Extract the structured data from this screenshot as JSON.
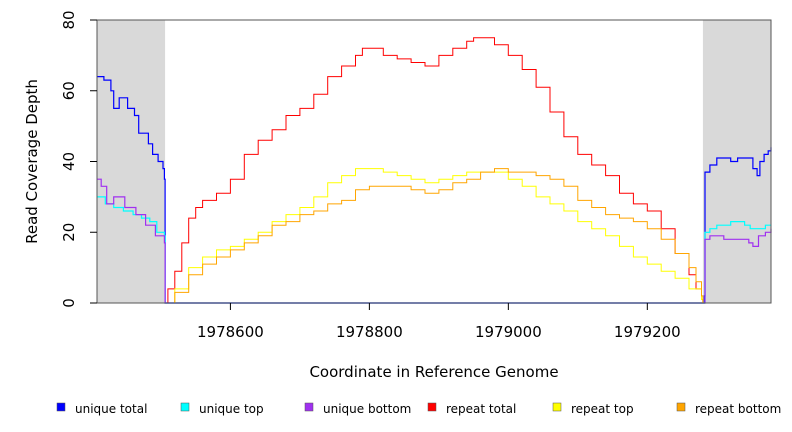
{
  "chart_data": {
    "type": "line",
    "title": "",
    "xlabel": "Coordinate in Reference Genome",
    "ylabel": "Read Coverage Depth",
    "xlim": [
      1978408,
      1979378
    ],
    "ylim": [
      0,
      80
    ],
    "xticks": [
      1978600,
      1978800,
      1979000,
      1979200
    ],
    "yticks": [
      0,
      20,
      40,
      60,
      80
    ],
    "grid": false,
    "shaded_regions": [
      [
        1978408,
        1978506
      ],
      [
        1979280,
        1979378
      ]
    ],
    "legend_position": "bottom",
    "series": [
      {
        "name": "unique total",
        "color": "#0000ff",
        "points": [
          [
            1978408,
            64
          ],
          [
            1978418,
            63
          ],
          [
            1978428,
            60
          ],
          [
            1978432,
            55
          ],
          [
            1978440,
            58
          ],
          [
            1978452,
            55
          ],
          [
            1978462,
            53
          ],
          [
            1978468,
            48
          ],
          [
            1978482,
            45
          ],
          [
            1978488,
            42
          ],
          [
            1978496,
            40
          ],
          [
            1978503,
            38
          ],
          [
            1978505,
            35
          ],
          [
            1978506,
            0
          ],
          [
            1979280,
            0
          ],
          [
            1979282,
            2
          ],
          [
            1979283,
            37
          ],
          [
            1979290,
            39
          ],
          [
            1979300,
            41
          ],
          [
            1979320,
            40
          ],
          [
            1979330,
            41
          ],
          [
            1979348,
            41
          ],
          [
            1979352,
            38
          ],
          [
            1979358,
            36
          ],
          [
            1979362,
            40
          ],
          [
            1979368,
            42
          ],
          [
            1979374,
            43
          ],
          [
            1979378,
            44
          ]
        ]
      },
      {
        "name": "unique top",
        "color": "#00ffff",
        "points": [
          [
            1978408,
            30
          ],
          [
            1978420,
            28
          ],
          [
            1978432,
            27
          ],
          [
            1978446,
            26
          ],
          [
            1978460,
            25
          ],
          [
            1978472,
            24
          ],
          [
            1978484,
            23
          ],
          [
            1978494,
            20
          ],
          [
            1978505,
            19
          ],
          [
            1978506,
            0
          ],
          [
            1979280,
            0
          ],
          [
            1979283,
            20
          ],
          [
            1979290,
            21
          ],
          [
            1979300,
            22
          ],
          [
            1979320,
            23
          ],
          [
            1979340,
            22
          ],
          [
            1979348,
            21
          ],
          [
            1979360,
            21
          ],
          [
            1979370,
            22
          ],
          [
            1979378,
            22
          ]
        ]
      },
      {
        "name": "unique bottom",
        "color": "#a030f0",
        "points": [
          [
            1978408,
            35
          ],
          [
            1978414,
            33
          ],
          [
            1978422,
            28
          ],
          [
            1978432,
            30
          ],
          [
            1978448,
            27
          ],
          [
            1978464,
            25
          ],
          [
            1978478,
            22
          ],
          [
            1978492,
            19
          ],
          [
            1978505,
            17
          ],
          [
            1978506,
            0
          ],
          [
            1979280,
            0
          ],
          [
            1979283,
            18
          ],
          [
            1979290,
            19
          ],
          [
            1979310,
            18
          ],
          [
            1979338,
            18
          ],
          [
            1979346,
            17
          ],
          [
            1979352,
            16
          ],
          [
            1979360,
            19
          ],
          [
            1979370,
            20
          ],
          [
            1979378,
            21
          ]
        ]
      },
      {
        "name": "repeat total",
        "color": "#ff0000",
        "points": [
          [
            1978506,
            0
          ],
          [
            1978510,
            4
          ],
          [
            1978520,
            9
          ],
          [
            1978530,
            17
          ],
          [
            1978540,
            24
          ],
          [
            1978550,
            27
          ],
          [
            1978560,
            29
          ],
          [
            1978580,
            31
          ],
          [
            1978600,
            35
          ],
          [
            1978620,
            42
          ],
          [
            1978640,
            46
          ],
          [
            1978660,
            49
          ],
          [
            1978680,
            53
          ],
          [
            1978700,
            55
          ],
          [
            1978720,
            59
          ],
          [
            1978740,
            64
          ],
          [
            1978760,
            67
          ],
          [
            1978780,
            70
          ],
          [
            1978790,
            72
          ],
          [
            1978800,
            72
          ],
          [
            1978820,
            70
          ],
          [
            1978840,
            69
          ],
          [
            1978860,
            68
          ],
          [
            1978880,
            67
          ],
          [
            1978900,
            70
          ],
          [
            1978920,
            72
          ],
          [
            1978940,
            74
          ],
          [
            1978950,
            75
          ],
          [
            1978960,
            75
          ],
          [
            1978980,
            73
          ],
          [
            1979000,
            70
          ],
          [
            1979020,
            66
          ],
          [
            1979040,
            61
          ],
          [
            1979060,
            54
          ],
          [
            1979080,
            47
          ],
          [
            1979100,
            42
          ],
          [
            1979120,
            39
          ],
          [
            1979140,
            36
          ],
          [
            1979160,
            31
          ],
          [
            1979180,
            28
          ],
          [
            1979200,
            26
          ],
          [
            1979220,
            21
          ],
          [
            1979240,
            14
          ],
          [
            1979260,
            8
          ],
          [
            1979270,
            4
          ],
          [
            1979278,
            1
          ],
          [
            1979280,
            0
          ]
        ]
      },
      {
        "name": "repeat top",
        "color": "#ffff00",
        "points": [
          [
            1978506,
            0
          ],
          [
            1978520,
            4
          ],
          [
            1978540,
            10
          ],
          [
            1978560,
            13
          ],
          [
            1978580,
            15
          ],
          [
            1978600,
            16
          ],
          [
            1978620,
            18
          ],
          [
            1978640,
            20
          ],
          [
            1978660,
            23
          ],
          [
            1978680,
            25
          ],
          [
            1978700,
            27
          ],
          [
            1978720,
            30
          ],
          [
            1978740,
            34
          ],
          [
            1978760,
            36
          ],
          [
            1978780,
            38
          ],
          [
            1978800,
            38
          ],
          [
            1978820,
            37
          ],
          [
            1978840,
            36
          ],
          [
            1978860,
            35
          ],
          [
            1978880,
            34
          ],
          [
            1978900,
            35
          ],
          [
            1978920,
            36
          ],
          [
            1978940,
            37
          ],
          [
            1978960,
            37
          ],
          [
            1978980,
            37
          ],
          [
            1979000,
            35
          ],
          [
            1979020,
            33
          ],
          [
            1979040,
            30
          ],
          [
            1979060,
            28
          ],
          [
            1979080,
            26
          ],
          [
            1979100,
            23
          ],
          [
            1979120,
            21
          ],
          [
            1979140,
            19
          ],
          [
            1979160,
            16
          ],
          [
            1979180,
            13
          ],
          [
            1979200,
            11
          ],
          [
            1979220,
            9
          ],
          [
            1979240,
            7
          ],
          [
            1979260,
            4
          ],
          [
            1979278,
            1
          ],
          [
            1979280,
            0
          ]
        ]
      },
      {
        "name": "repeat bottom",
        "color": "#ffa500",
        "points": [
          [
            1978506,
            0
          ],
          [
            1978520,
            3
          ],
          [
            1978540,
            8
          ],
          [
            1978560,
            11
          ],
          [
            1978580,
            13
          ],
          [
            1978600,
            15
          ],
          [
            1978620,
            17
          ],
          [
            1978640,
            19
          ],
          [
            1978660,
            22
          ],
          [
            1978680,
            23
          ],
          [
            1978700,
            25
          ],
          [
            1978720,
            26
          ],
          [
            1978740,
            28
          ],
          [
            1978760,
            29
          ],
          [
            1978780,
            32
          ],
          [
            1978800,
            33
          ],
          [
            1978820,
            33
          ],
          [
            1978840,
            33
          ],
          [
            1978860,
            32
          ],
          [
            1978880,
            31
          ],
          [
            1978900,
            32
          ],
          [
            1978920,
            34
          ],
          [
            1978940,
            35
          ],
          [
            1978960,
            37
          ],
          [
            1978980,
            38
          ],
          [
            1979000,
            37
          ],
          [
            1979020,
            37
          ],
          [
            1979040,
            36
          ],
          [
            1979060,
            35
          ],
          [
            1979080,
            33
          ],
          [
            1979100,
            29
          ],
          [
            1979120,
            27
          ],
          [
            1979140,
            25
          ],
          [
            1979160,
            24
          ],
          [
            1979180,
            23
          ],
          [
            1979200,
            21
          ],
          [
            1979220,
            18
          ],
          [
            1979240,
            14
          ],
          [
            1979260,
            10
          ],
          [
            1979270,
            6
          ],
          [
            1979278,
            2
          ],
          [
            1979280,
            0
          ]
        ]
      }
    ]
  }
}
